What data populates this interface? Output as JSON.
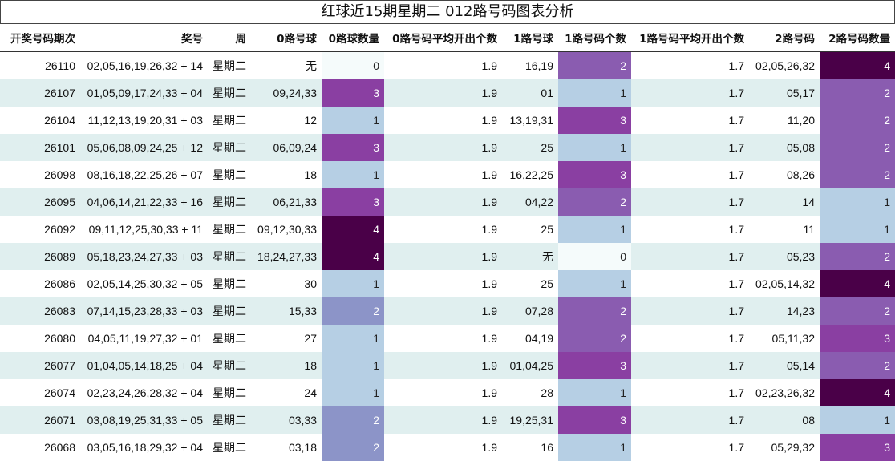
{
  "title": "红球近15期星期二 012路号码图表分析",
  "columns": [
    "开奖号码期次",
    "奖号",
    "周",
    "0路号球",
    "0路球数量",
    "0路号码平均开出个数",
    "1路号球",
    "1路号码个数",
    "1路号码平均开出个数",
    "2路号码",
    "2路号码数量"
  ],
  "colors": {
    "level_0": "#f5fbfb",
    "level_1": "#b6cfe4",
    "level_2": "#8a5cb0",
    "level_3": "#8a3fa2",
    "level_4": "#4a0048",
    "zero_count_2": "#8c94c8"
  },
  "rows": [
    {
      "issue": "26110",
      "numbers": "02,05,16,19,26,32 + 14",
      "week": "星期二",
      "r0": "无",
      "c0": "0",
      "a0": "1.9",
      "r1": "16,19",
      "c1": "2",
      "a1": "1.7",
      "r2": "02,05,26,32",
      "c2": "4"
    },
    {
      "issue": "26107",
      "numbers": "01,05,09,17,24,33 + 04",
      "week": "星期二",
      "r0": "09,24,33",
      "c0": "3",
      "a0": "1.9",
      "r1": "01",
      "c1": "1",
      "a1": "1.7",
      "r2": "05,17",
      "c2": "2"
    },
    {
      "issue": "26104",
      "numbers": "11,12,13,19,20,31 + 03",
      "week": "星期二",
      "r0": "12",
      "c0": "1",
      "a0": "1.9",
      "r1": "13,19,31",
      "c1": "3",
      "a1": "1.7",
      "r2": "11,20",
      "c2": "2"
    },
    {
      "issue": "26101",
      "numbers": "05,06,08,09,24,25 + 12",
      "week": "星期二",
      "r0": "06,09,24",
      "c0": "3",
      "a0": "1.9",
      "r1": "25",
      "c1": "1",
      "a1": "1.7",
      "r2": "05,08",
      "c2": "2"
    },
    {
      "issue": "26098",
      "numbers": "08,16,18,22,25,26 + 07",
      "week": "星期二",
      "r0": "18",
      "c0": "1",
      "a0": "1.9",
      "r1": "16,22,25",
      "c1": "3",
      "a1": "1.7",
      "r2": "08,26",
      "c2": "2"
    },
    {
      "issue": "26095",
      "numbers": "04,06,14,21,22,33 + 16",
      "week": "星期二",
      "r0": "06,21,33",
      "c0": "3",
      "a0": "1.9",
      "r1": "04,22",
      "c1": "2",
      "a1": "1.7",
      "r2": "14",
      "c2": "1"
    },
    {
      "issue": "26092",
      "numbers": "09,11,12,25,30,33 + 11",
      "week": "星期二",
      "r0": "09,12,30,33",
      "c0": "4",
      "a0": "1.9",
      "r1": "25",
      "c1": "1",
      "a1": "1.7",
      "r2": "11",
      "c2": "1"
    },
    {
      "issue": "26089",
      "numbers": "05,18,23,24,27,33 + 03",
      "week": "星期二",
      "r0": "18,24,27,33",
      "c0": "4",
      "a0": "1.9",
      "r1": "无",
      "c1": "0",
      "a1": "1.7",
      "r2": "05,23",
      "c2": "2"
    },
    {
      "issue": "26086",
      "numbers": "02,05,14,25,30,32 + 05",
      "week": "星期二",
      "r0": "30",
      "c0": "1",
      "a0": "1.9",
      "r1": "25",
      "c1": "1",
      "a1": "1.7",
      "r2": "02,05,14,32",
      "c2": "4"
    },
    {
      "issue": "26083",
      "numbers": "07,14,15,23,28,33 + 03",
      "week": "星期二",
      "r0": "15,33",
      "c0": "2",
      "a0": "1.9",
      "r1": "07,28",
      "c1": "2",
      "a1": "1.7",
      "r2": "14,23",
      "c2": "2"
    },
    {
      "issue": "26080",
      "numbers": "04,05,11,19,27,32 + 01",
      "week": "星期二",
      "r0": "27",
      "c0": "1",
      "a0": "1.9",
      "r1": "04,19",
      "c1": "2",
      "a1": "1.7",
      "r2": "05,11,32",
      "c2": "3"
    },
    {
      "issue": "26077",
      "numbers": "01,04,05,14,18,25 + 04",
      "week": "星期二",
      "r0": "18",
      "c0": "1",
      "a0": "1.9",
      "r1": "01,04,25",
      "c1": "3",
      "a1": "1.7",
      "r2": "05,14",
      "c2": "2"
    },
    {
      "issue": "26074",
      "numbers": "02,23,24,26,28,32 + 04",
      "week": "星期二",
      "r0": "24",
      "c0": "1",
      "a0": "1.9",
      "r1": "28",
      "c1": "1",
      "a1": "1.7",
      "r2": "02,23,26,32",
      "c2": "4"
    },
    {
      "issue": "26071",
      "numbers": "03,08,19,25,31,33 + 05",
      "week": "星期二",
      "r0": "03,33",
      "c0": "2",
      "a0": "1.9",
      "r1": "19,25,31",
      "c1": "3",
      "a1": "1.7",
      "r2": "08",
      "c2": "1"
    },
    {
      "issue": "26068",
      "numbers": "03,05,16,18,29,32 + 04",
      "week": "星期二",
      "r0": "03,18",
      "c0": "2",
      "a0": "1.9",
      "r1": "16",
      "c1": "1",
      "a1": "1.7",
      "r2": "05,29,32",
      "c2": "3"
    }
  ]
}
